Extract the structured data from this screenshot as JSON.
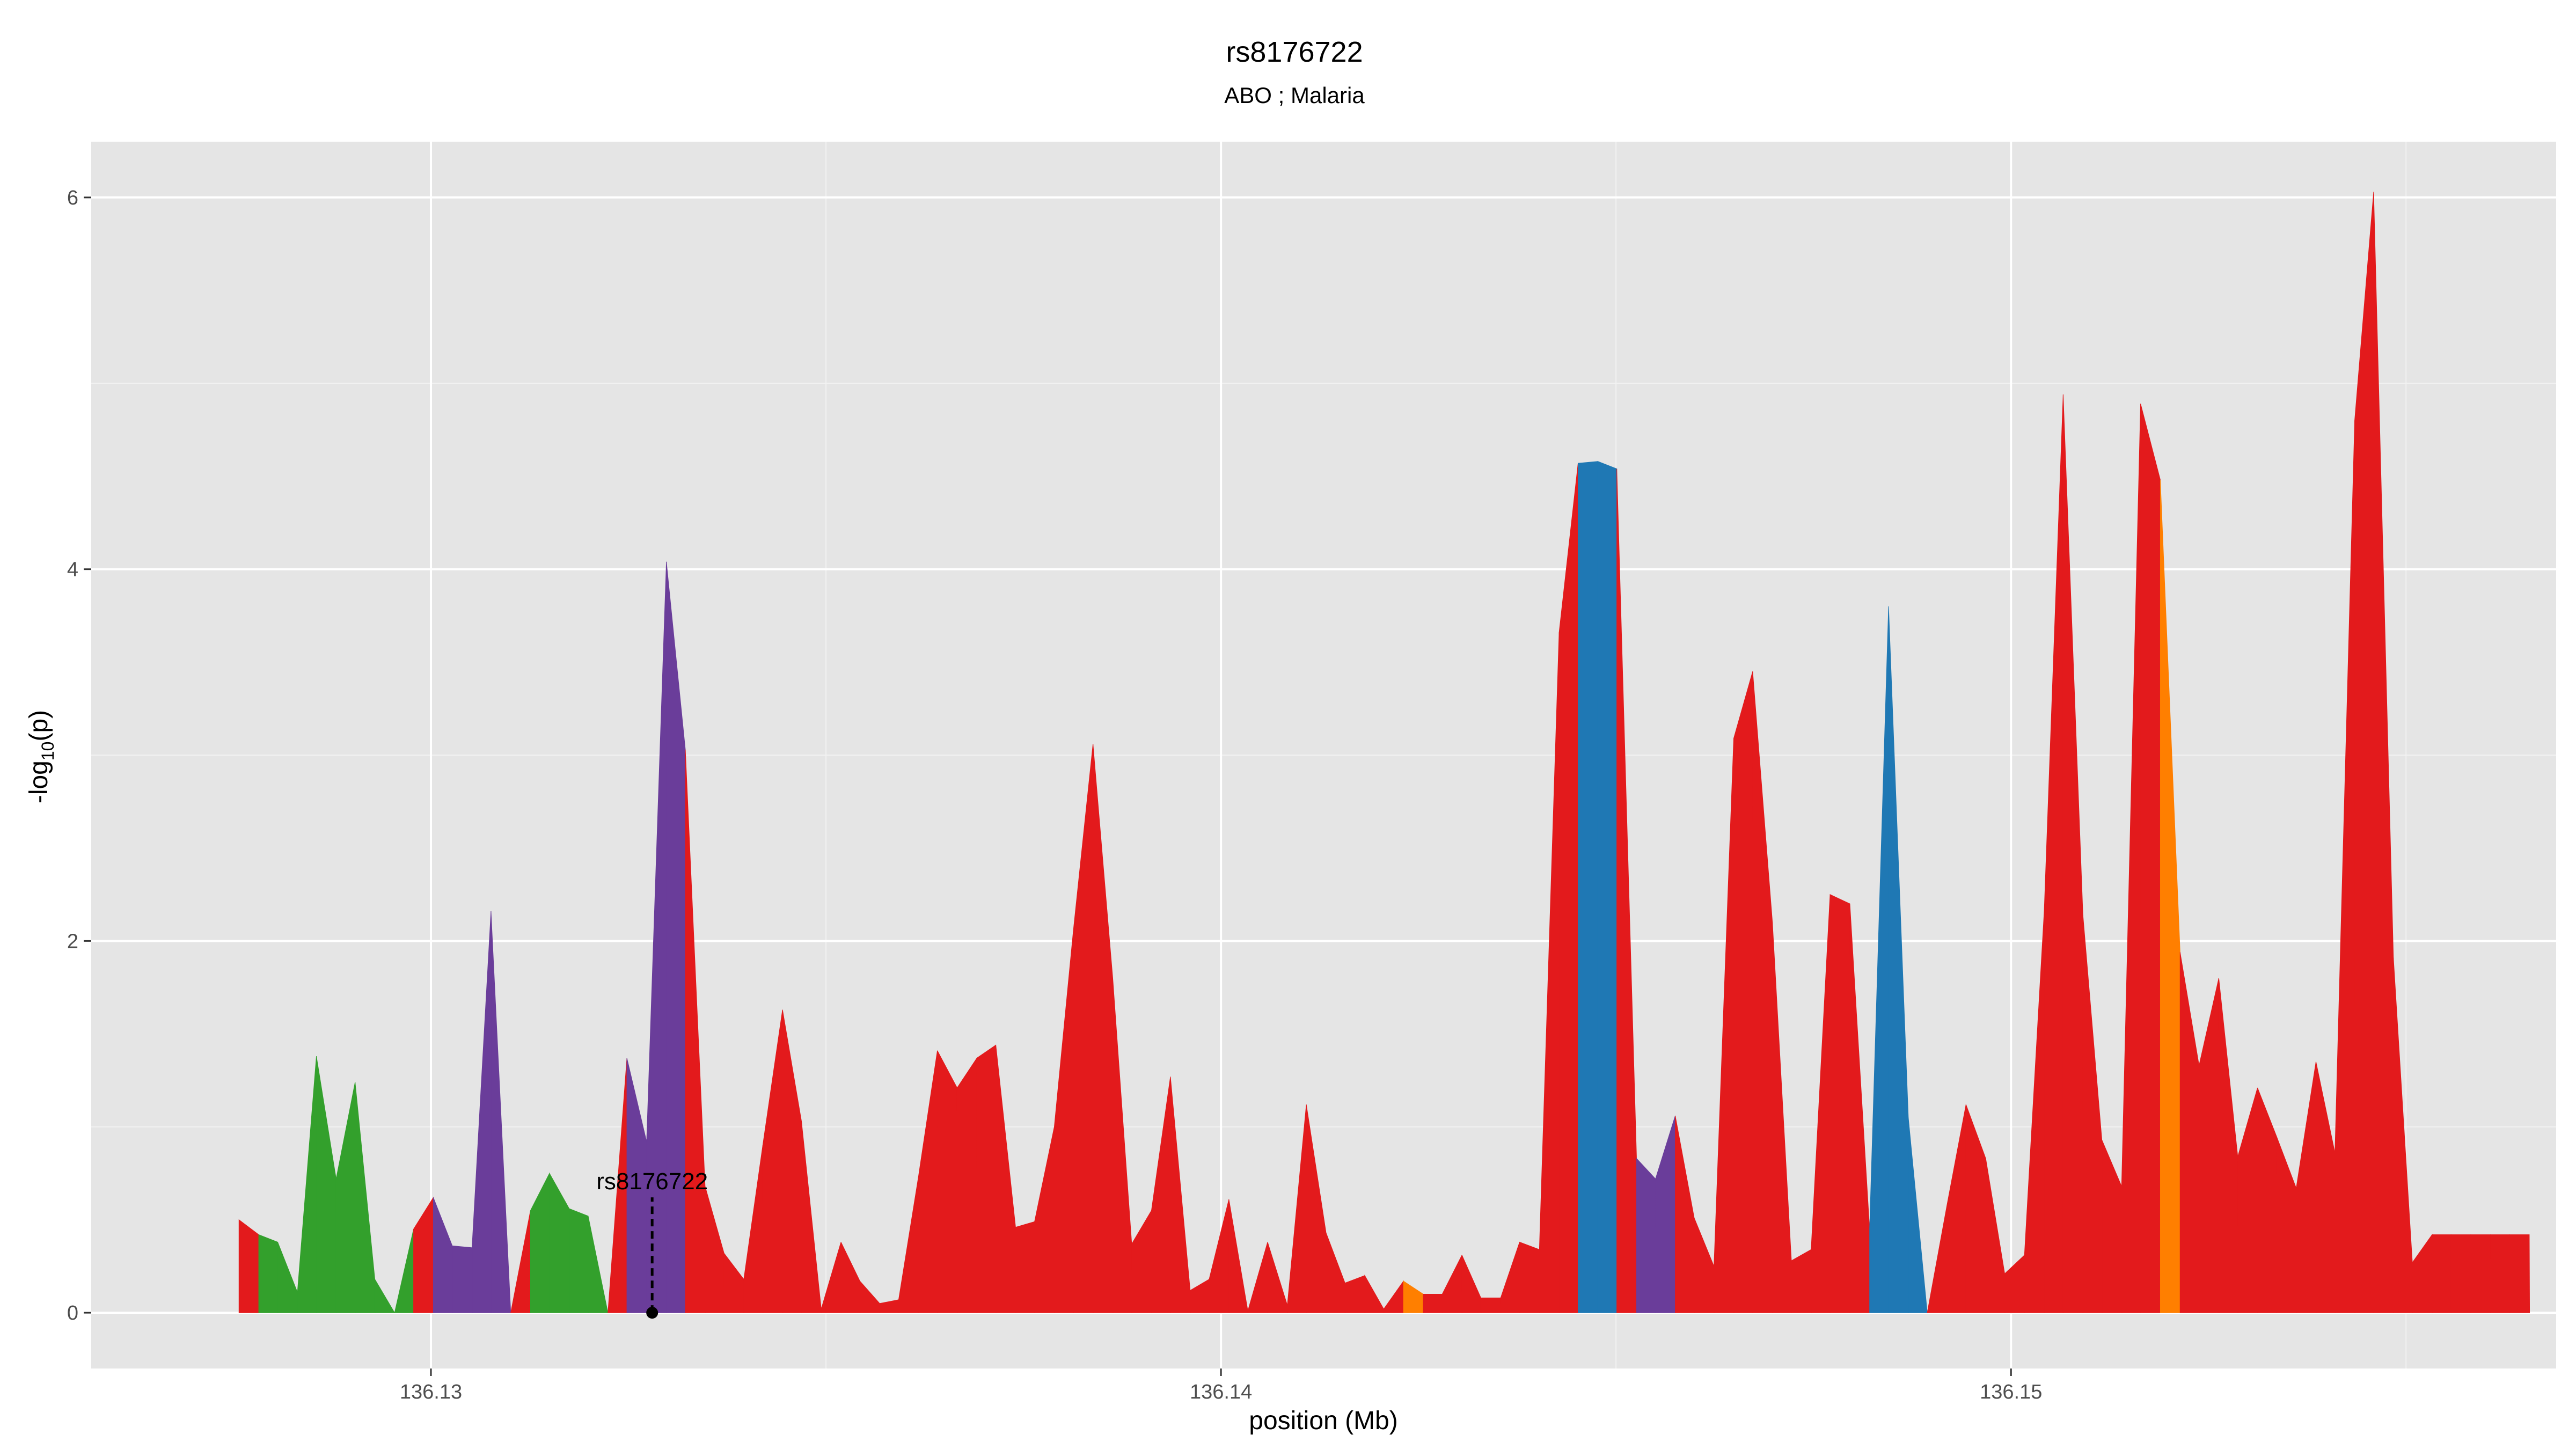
{
  "chart_data": {
    "type": "area",
    "title": "rs8176722",
    "subtitle": "ABO ; Malaria",
    "xlabel": "position (Mb)",
    "ylabel_base": "-log",
    "ylabel_sub": "10",
    "ylabel_tail": "(p)",
    "xlim": [
      136.1257,
      136.1569
    ],
    "ylim": [
      -0.3,
      6.3
    ],
    "x_ticks": [
      136.13,
      136.14,
      136.15
    ],
    "x_tick_labels": [
      "136.13",
      "136.14",
      "136.15"
    ],
    "y_ticks": [
      0,
      2,
      4,
      6
    ],
    "y_tick_labels": [
      "0",
      "2",
      "4",
      "6"
    ],
    "grid": true,
    "colors": {
      "panel": "#e5e5e5",
      "grid_major": "#ffffff",
      "grid_minor": "#f2f2f2",
      "red": "#e31a1c",
      "green": "#33a02c",
      "purple": "#6a3d9a",
      "blue": "#1f78b4",
      "orange": "#ff7f00"
    },
    "annotation": {
      "label": "rs8176722",
      "x": 136.1328,
      "y": 0
    },
    "x": [
      136.12757,
      136.12782,
      136.12806,
      136.12831,
      136.12855,
      136.1288,
      136.12904,
      136.12929,
      136.12954,
      136.12978,
      136.13003,
      136.13027,
      136.13052,
      136.13076,
      136.13101,
      136.13126,
      136.1315,
      136.13175,
      136.13199,
      136.13224,
      136.13248,
      136.13273,
      136.13298,
      136.13322,
      136.13347,
      136.13371,
      136.13396,
      136.1342,
      136.13445,
      136.13469,
      136.13494,
      136.13519,
      136.13543,
      136.13568,
      136.13592,
      136.13617,
      136.13641,
      136.13666,
      136.13691,
      136.13715,
      136.1374,
      136.13764,
      136.13789,
      136.13813,
      136.13838,
      136.13863,
      136.13887,
      136.13912,
      136.13936,
      136.13961,
      136.13985,
      136.1401,
      136.14034,
      136.14059,
      136.14084,
      136.14108,
      136.14133,
      136.14157,
      136.14182,
      136.14206,
      136.14231,
      136.14256,
      136.1428,
      136.14305,
      136.14329,
      136.14354,
      136.14378,
      136.14403,
      136.14428,
      136.14452,
      136.14477,
      136.14501,
      136.14526,
      136.1455,
      136.14575,
      136.14599,
      136.14624,
      136.14649,
      136.14673,
      136.14698,
      136.14722,
      136.14747,
      136.14771,
      136.14796,
      136.14821,
      136.14845,
      136.1487,
      136.14894,
      136.14919,
      136.14943,
      136.14968,
      136.14992,
      136.15017,
      136.15042,
      136.15066,
      136.15091,
      136.15115,
      136.1514,
      136.15164,
      136.15189,
      136.15214,
      136.15238,
      136.15263,
      136.15287,
      136.15312,
      136.15336,
      136.15361,
      136.15386,
      136.1541,
      136.15435,
      136.15459,
      136.15484,
      136.15508,
      136.15533,
      136.15557,
      136.15582,
      136.15607,
      136.15631,
      136.15656
    ],
    "y": [
      0.5,
      0.42,
      0.38,
      0.11,
      1.38,
      0.72,
      1.24,
      0.18,
      0,
      0.45,
      0.62,
      0.36,
      0.35,
      2.16,
      0,
      0.55,
      0.75,
      0.56,
      0.52,
      0,
      1.37,
      0.92,
      4.04,
      3.03,
      0.68,
      0.32,
      0.18,
      0.9,
      1.63,
      1.03,
      0.02,
      0.38,
      0.17,
      0.05,
      0.07,
      0.73,
      1.41,
      1.21,
      1.37,
      1.44,
      0.46,
      0.49,
      1.0,
      2.05,
      3.06,
      1.8,
      0.37,
      0.55,
      1.27,
      0.12,
      0.18,
      0.61,
      0.01,
      0.38,
      0.04,
      1.12,
      0.43,
      0.16,
      0.2,
      0.02,
      0.17,
      0.1,
      0.1,
      0.31,
      0.08,
      0.08,
      0.38,
      0.34,
      3.66,
      4.57,
      4.58,
      4.54,
      0.83,
      0.72,
      1.06,
      0.51,
      0.25,
      3.09,
      3.45,
      2.1,
      0.28,
      0.34,
      2.25,
      2.2,
      0.45,
      3.8,
      1.05,
      0,
      0.58,
      1.12,
      0.83,
      0.21,
      0.31,
      2.16,
      4.94,
      2.14,
      0.93,
      0.68,
      4.89,
      4.48,
      1.94,
      1.33,
      1.8,
      0.84,
      1.21,
      0.95,
      0.67,
      1.35,
      0.86,
      4.8,
      6.03,
      1.91,
      0.27,
      0.42,
      0.42,
      0.42,
      0.42,
      0.42,
      0.42
    ],
    "colors_seq": [
      "red",
      "green",
      "green",
      "green",
      "green",
      "green",
      "green",
      "green",
      "green",
      "red",
      "purple",
      "purple",
      "purple",
      "purple",
      "red",
      "green",
      "green",
      "green",
      "green",
      "red",
      "purple",
      "purple",
      "purple",
      "red",
      "red",
      "red",
      "red",
      "red",
      "red",
      "red",
      "red",
      "red",
      "red",
      "red",
      "red",
      "red",
      "red",
      "red",
      "red",
      "red",
      "red",
      "red",
      "red",
      "red",
      "red",
      "red",
      "red",
      "red",
      "red",
      "red",
      "red",
      "red",
      "red",
      "red",
      "red",
      "red",
      "red",
      "red",
      "red",
      "red",
      "orange",
      "red",
      "red",
      "red",
      "red",
      "red",
      "red",
      "red",
      "red",
      "blue",
      "blue",
      "red",
      "purple",
      "purple",
      "red",
      "red",
      "red",
      "red",
      "red",
      "red",
      "red",
      "red",
      "red",
      "red",
      "blue",
      "blue",
      "blue",
      "red",
      "red",
      "red",
      "red",
      "red",
      "red",
      "red",
      "red",
      "red",
      "red",
      "red",
      "red",
      "orange",
      "red",
      "red",
      "red",
      "red",
      "red",
      "red",
      "red",
      "red",
      "red",
      "red",
      "red",
      "red",
      "red",
      "red",
      "red",
      "red",
      "red",
      "red",
      "red"
    ]
  }
}
